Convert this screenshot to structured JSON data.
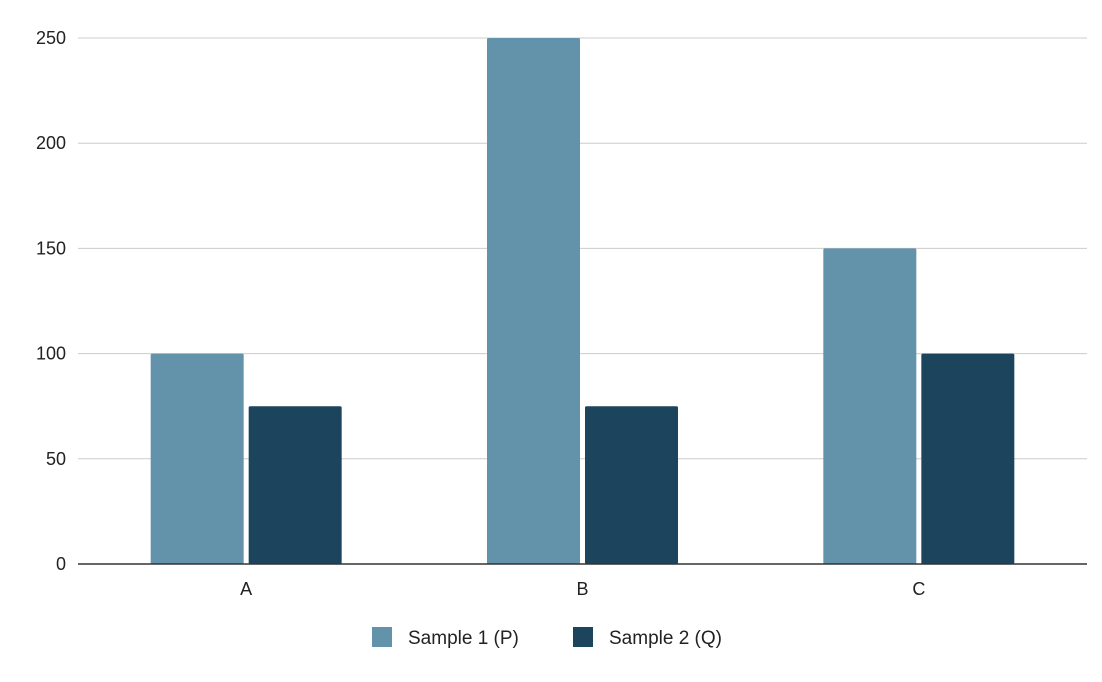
{
  "chart_data": {
    "type": "bar",
    "categories": [
      "A",
      "B",
      "C"
    ],
    "series": [
      {
        "name": "Sample 1 (P)",
        "values": [
          100,
          250,
          150
        ],
        "color": "#6392ab"
      },
      {
        "name": "Sample 2 (Q)",
        "values": [
          75,
          75,
          100
        ],
        "color": "#1c455d"
      }
    ],
    "yticks": [
      "0",
      "50",
      "100",
      "150",
      "200",
      "250"
    ],
    "ylim": [
      0,
      250
    ],
    "grid": true,
    "legend_position": "bottom-center",
    "gridline_color": "#cccccc",
    "axis_color": "#333333"
  }
}
